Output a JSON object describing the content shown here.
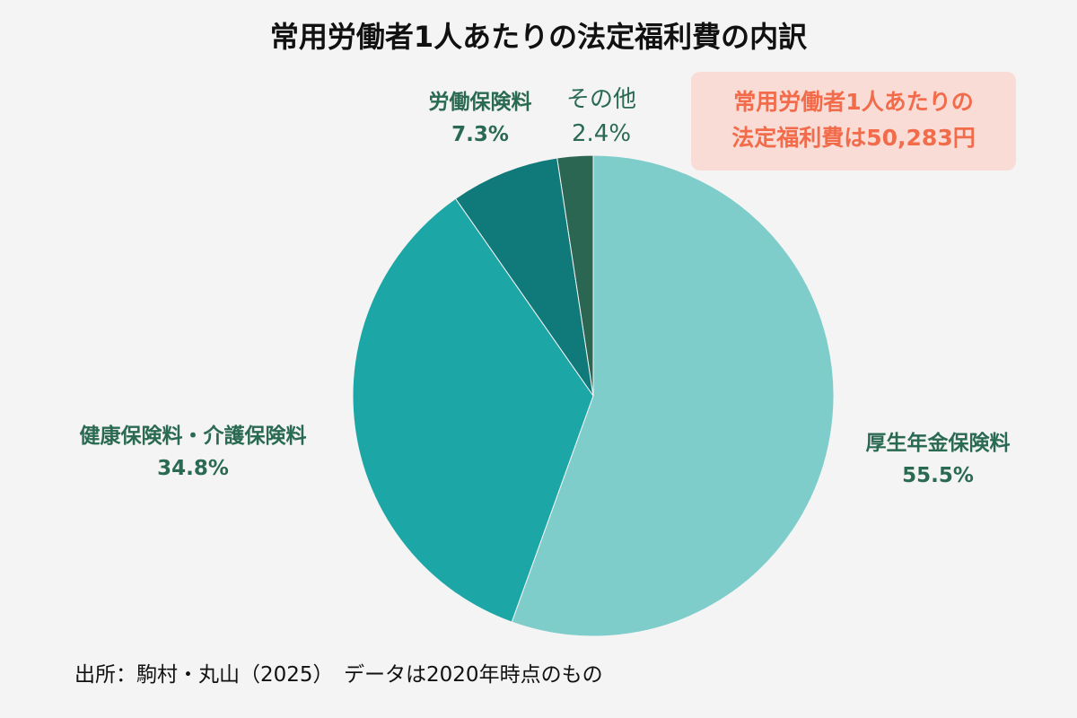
{
  "chart_data": {
    "type": "pie",
    "title": "常用労働者1人あたりの法定福利費の内訳",
    "slices": [
      {
        "label": "厚生年金保険料",
        "value": 55.5,
        "value_label": "55.5%",
        "color": "#7ecdca"
      },
      {
        "label": "健康保険料・介護保険料",
        "value": 34.8,
        "value_label": "34.8%",
        "color": "#1ca6a6"
      },
      {
        "label": "労働保険料",
        "value": 7.3,
        "value_label": "7.3%",
        "color": "#10797a"
      },
      {
        "label": "その他",
        "value": 2.4,
        "value_label": "2.4%",
        "color": "#2a6652"
      }
    ],
    "start": "top",
    "direction": "clockwise",
    "annotation": [
      "常用労働者1人あたりの",
      "法定福利費は50,283円"
    ],
    "source": "出所：駒村・丸山（2025）　データは2020年時点のもの"
  }
}
